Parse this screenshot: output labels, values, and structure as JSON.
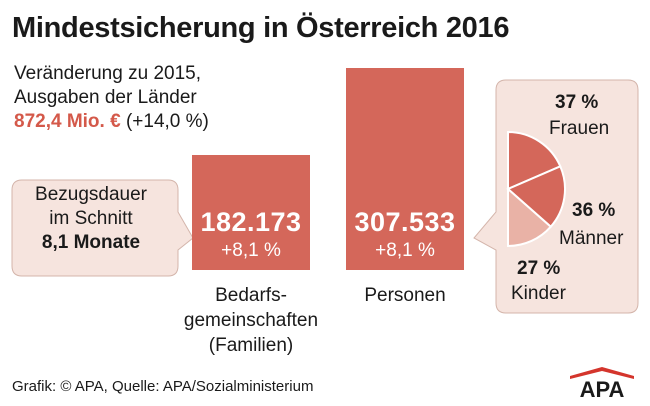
{
  "title": "Mindestsicherung in Österreich 2016",
  "subtitle": {
    "line1": "Veränderung zu 2015,",
    "line2": "Ausgaben der Länder",
    "amount": "872,4 Mio. €",
    "amount_change": "(+14,0 %)"
  },
  "duration": {
    "line1": "Bezugsdauer",
    "line2": "im Schnitt",
    "value": "8,1 Monate"
  },
  "footer": {
    "source": "Grafik: © APA, Quelle: APA/Sozialministerium",
    "logo_text": "APA"
  },
  "colors": {
    "bar": "#d4675a",
    "accent": "#d4594a",
    "slice_frauen": "#d4675a",
    "slice_maenner": "#d4675a",
    "slice_kinder": "#e9b2a6",
    "callout_bg": "#f6e4de"
  },
  "chart_data": [
    {
      "type": "bar",
      "categories": [
        "Bedarfsgemeinschaften (Familien)",
        "Personen"
      ],
      "values": [
        182173,
        307533
      ],
      "value_labels": [
        "182.173",
        "307.533"
      ],
      "change_labels": [
        "+8,1 %",
        "+8,1 %"
      ],
      "label_lines": [
        [
          "Bedarfs-",
          "gemeinschaften",
          "(Familien)"
        ],
        [
          "Personen"
        ]
      ]
    },
    {
      "type": "pie",
      "title": "Personen",
      "labels": [
        "Frauen",
        "Männer",
        "Kinder"
      ],
      "values": [
        37,
        36,
        27
      ],
      "value_labels": [
        "37 %",
        "36 %",
        "27 %"
      ]
    }
  ]
}
